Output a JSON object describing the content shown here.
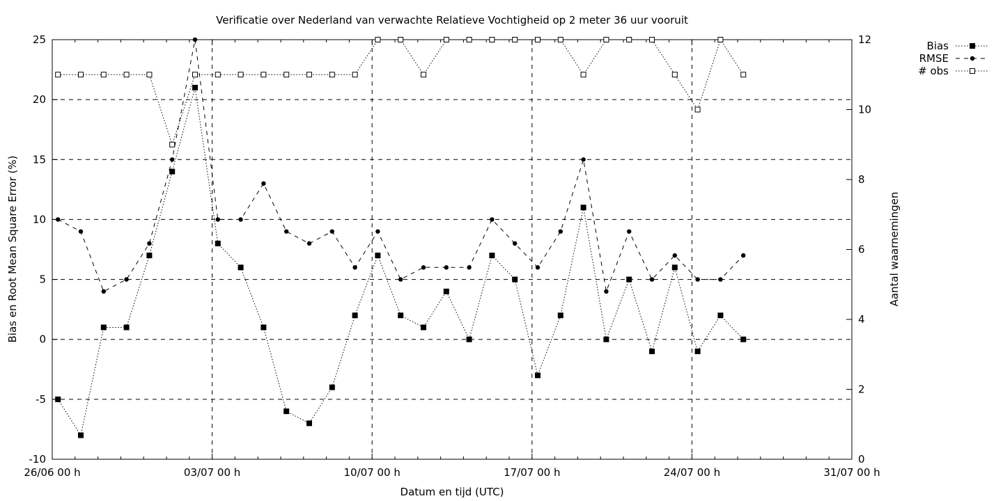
{
  "chart_data": {
    "type": "line",
    "title": "Verificatie over Nederland van verwachte Relatieve Vochtigheid op 2 meter 36 uur vooruit",
    "xlabel": "Datum en tijd (UTC)",
    "ylabel": "Bias en Root Mean Square Error (%)",
    "y2label": "Aantal waarnemingen",
    "ylim": [
      -10,
      25
    ],
    "y2lim": [
      0,
      12
    ],
    "yticks": [
      -10,
      -5,
      0,
      5,
      10,
      15,
      20,
      25
    ],
    "y2ticks": [
      0,
      2,
      4,
      6,
      8,
      10,
      12
    ],
    "xlim": [
      "26/06",
      "31/07"
    ],
    "xticks": [
      "26/06 00 h",
      "03/07 00 h",
      "10/07 00 h",
      "17/07 00 h",
      "24/07 00 h",
      "31/07 00 h"
    ],
    "grid": true,
    "legend_position": "outside-top-right",
    "x": [
      "26/06",
      "27/06",
      "28/06",
      "29/06",
      "30/06",
      "01/07",
      "02/07",
      "03/07",
      "04/07",
      "05/07",
      "06/07",
      "07/07",
      "08/07",
      "09/07",
      "10/07",
      "11/07",
      "12/07",
      "13/07",
      "14/07",
      "15/07",
      "16/07",
      "17/07",
      "18/07",
      "19/07",
      "20/07",
      "21/07",
      "22/07",
      "23/07",
      "24/07",
      "25/07",
      "26/07"
    ],
    "series": [
      {
        "name": "Bias",
        "axis": "y",
        "marker": "filled-square",
        "line": "dotted",
        "values": [
          -5,
          -8,
          1,
          1,
          7,
          14,
          21,
          8,
          6,
          1,
          -6,
          -7,
          -4,
          2,
          7,
          2,
          1,
          4,
          0,
          7,
          5,
          -3,
          2,
          11,
          0,
          5,
          -1,
          6,
          -1,
          2,
          0
        ]
      },
      {
        "name": "RMSE",
        "axis": "y",
        "marker": "filled-circle",
        "line": "dashed",
        "values": [
          10,
          9,
          4,
          5,
          8,
          15,
          25,
          10,
          10,
          13,
          9,
          8,
          9,
          6,
          9,
          5,
          6,
          6,
          6,
          10,
          8,
          6,
          9,
          15,
          4,
          9,
          5,
          7,
          5,
          5,
          7
        ]
      },
      {
        "name": "# obs",
        "axis": "y2",
        "marker": "open-square",
        "line": "dotted",
        "values": [
          11,
          11,
          11,
          11,
          11,
          9,
          11,
          11,
          11,
          11,
          11,
          11,
          11,
          11,
          12,
          12,
          11,
          12,
          12,
          12,
          12,
          12,
          12,
          11,
          12,
          12,
          12,
          11,
          10,
          12,
          11
        ]
      }
    ]
  }
}
